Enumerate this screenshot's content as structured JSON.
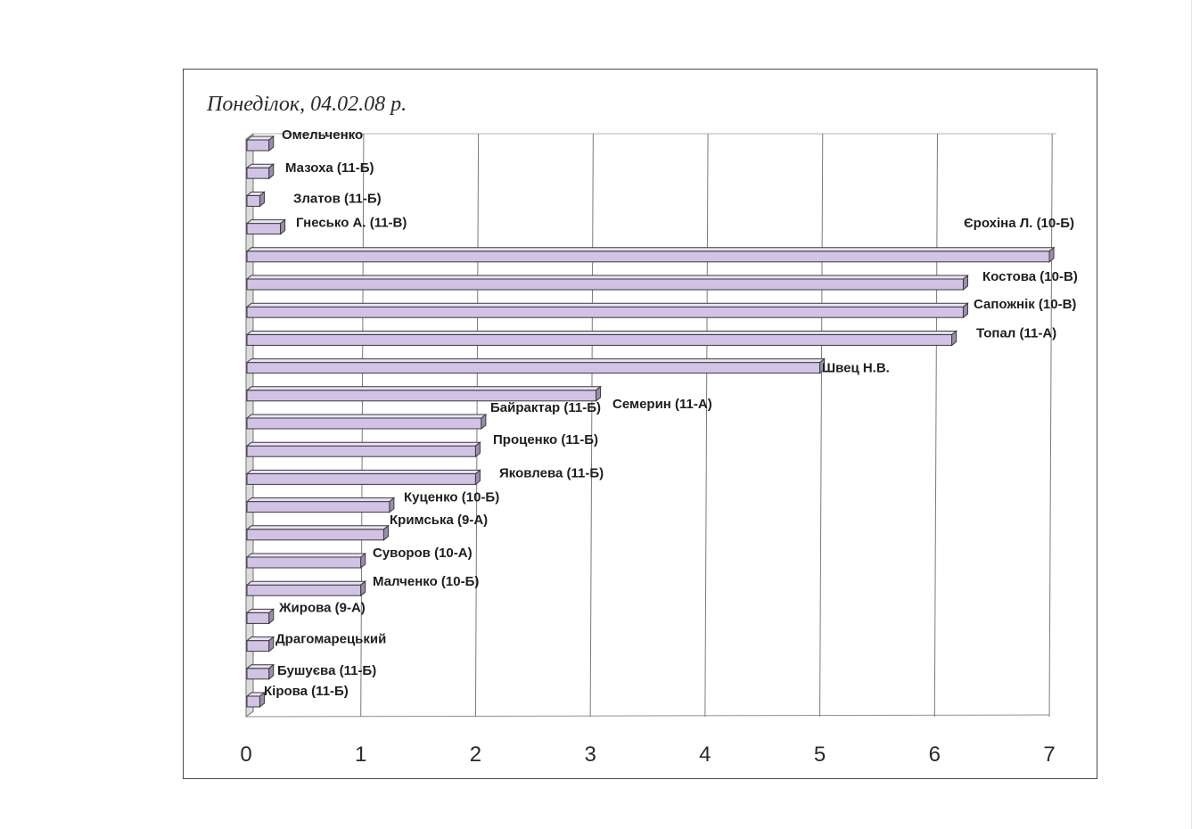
{
  "chart_data": {
    "type": "bar",
    "orientation": "horizontal",
    "title": "Понеділок, 04.02.08 р.",
    "xlim": [
      0,
      7
    ],
    "xticks": [
      "0",
      "1",
      "2",
      "3",
      "4",
      "5",
      "6",
      "7"
    ],
    "grid": true,
    "legend": "none",
    "bar_color": "#d2c2e6",
    "categories": [
      "Омельченко",
      "Мазоха (11-Б)",
      "Златов (11-Б)",
      "Гнесько А. (11-В)",
      "Єрохіна Л. (10-Б)",
      "Костова (10-В)",
      "Сапожнік (10-В)",
      "Топал (11-А)",
      "Швец Н.В.",
      "Семерин (11-А)",
      "Байрактар (11-Б)",
      "Проценко (11-Б)",
      "Яковлева (11-Б)",
      "Куценко (10-Б)",
      "Кримська (9-А)",
      "Суворов (10-А)",
      "Малченко (10-Б)",
      "Жирова (9-А)",
      "Драгомарецький",
      "Бушуєва (11-Б)",
      "Кірова (11-Б)"
    ],
    "values": [
      0.2,
      0.2,
      0.12,
      0.3,
      7,
      6.25,
      6.25,
      6.15,
      5,
      3.05,
      2.05,
      2,
      2,
      1.25,
      1.2,
      1,
      1,
      0.2,
      0.2,
      0.2,
      0.12
    ]
  }
}
